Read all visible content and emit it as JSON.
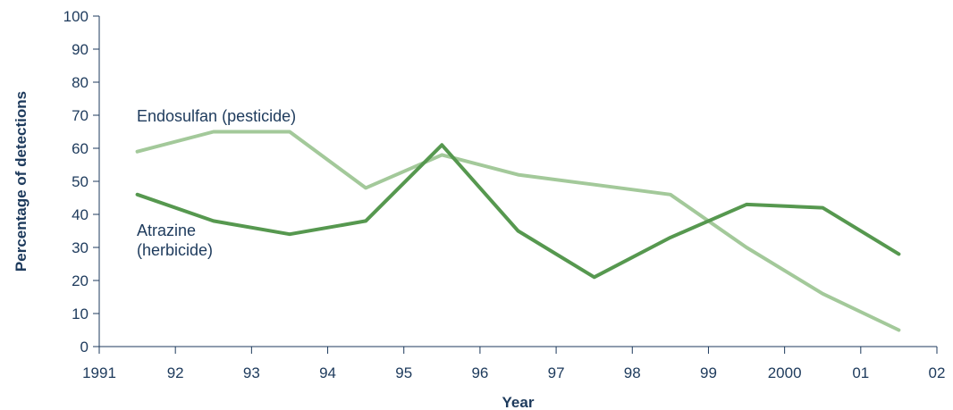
{
  "chart_data": {
    "type": "line",
    "title": "",
    "xlabel": "Year",
    "ylabel": "Percentage of detections",
    "xlim": [
      1991,
      2002
    ],
    "ylim": [
      0,
      100
    ],
    "x_ticks": [
      1991,
      1992,
      1993,
      1994,
      1995,
      1996,
      1997,
      1998,
      1999,
      2000,
      2001,
      2002
    ],
    "x_tick_labels": [
      "1991",
      "92",
      "93",
      "94",
      "95",
      "96",
      "97",
      "98",
      "99",
      "2000",
      "01",
      "02"
    ],
    "y_ticks": [
      0,
      10,
      20,
      30,
      40,
      50,
      60,
      70,
      80,
      90,
      100
    ],
    "y_tick_labels": [
      "0",
      "10",
      "20",
      "30",
      "40",
      "50",
      "60",
      "70",
      "80",
      "90",
      "100"
    ],
    "grid": false,
    "legend": "none",
    "series": [
      {
        "name": "Endosulfan (pesticide)",
        "label_lines": [
          "Endosulfan (pesticide)"
        ],
        "color": "#a3c99a",
        "x": [
          1991.5,
          1992.5,
          1993.5,
          1994.5,
          1995.5,
          1996.5,
          1997.5,
          1998.5,
          1999.5,
          2000.5,
          2001.5
        ],
        "values": [
          59,
          65,
          65,
          48,
          58,
          52,
          49,
          46,
          30,
          16,
          5
        ]
      },
      {
        "name": "Atrazine (herbicide)",
        "label_lines": [
          "Atrazine",
          "(herbicide)"
        ],
        "color": "#56984f",
        "x": [
          1991.5,
          1992.5,
          1993.5,
          1994.5,
          1995.5,
          1996.5,
          1997.5,
          1998.5,
          1999.5,
          2000.5,
          2001.5
        ],
        "values": [
          46,
          38,
          34,
          38,
          61,
          35,
          21,
          33,
          43,
          42,
          28
        ]
      }
    ]
  }
}
